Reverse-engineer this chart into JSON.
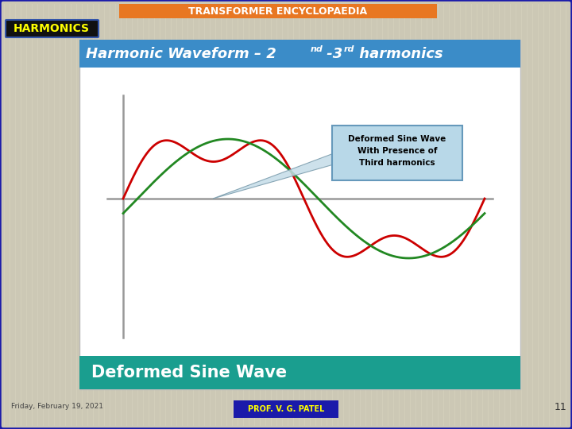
{
  "bg_color": "#ccc8b5",
  "top_bar_color": "#e87722",
  "top_bar_text": "TRANSFORMER ENCYCLOPAEDIA",
  "top_bar_text_color": "#ffffff",
  "harmonics_box_color": "#111111",
  "harmonics_text": "HARMONICS",
  "harmonics_text_color": "#ffff00",
  "content_bg": "#ffffff",
  "header_bar_color": "#3b8cc8",
  "header_text_color": "#ffffff",
  "footer_bar_color": "#1a9e8f",
  "footer_text": "Deformed Sine Wave",
  "footer_text_color": "#ffffff",
  "date_text": "Friday, February 19, 2021",
  "date_color": "#444444",
  "prof_box_color": "#1a1aaa",
  "prof_text": "PROF. V. G. PATEL",
  "prof_text_color": "#ffff00",
  "page_num": "11",
  "page_num_color": "#333333",
  "annotation_box_color": "#b8d8e8",
  "annotation_border_color": "#6699bb",
  "annotation_text_line1": "Deformed Sine Wave",
  "annotation_text_line2": "With Presence of",
  "annotation_text_line3": "Third harmonics",
  "red_wave_color": "#cc0000",
  "green_wave_color": "#228822",
  "axis_color": "#999999",
  "outer_border_color": "#1a1aaa"
}
